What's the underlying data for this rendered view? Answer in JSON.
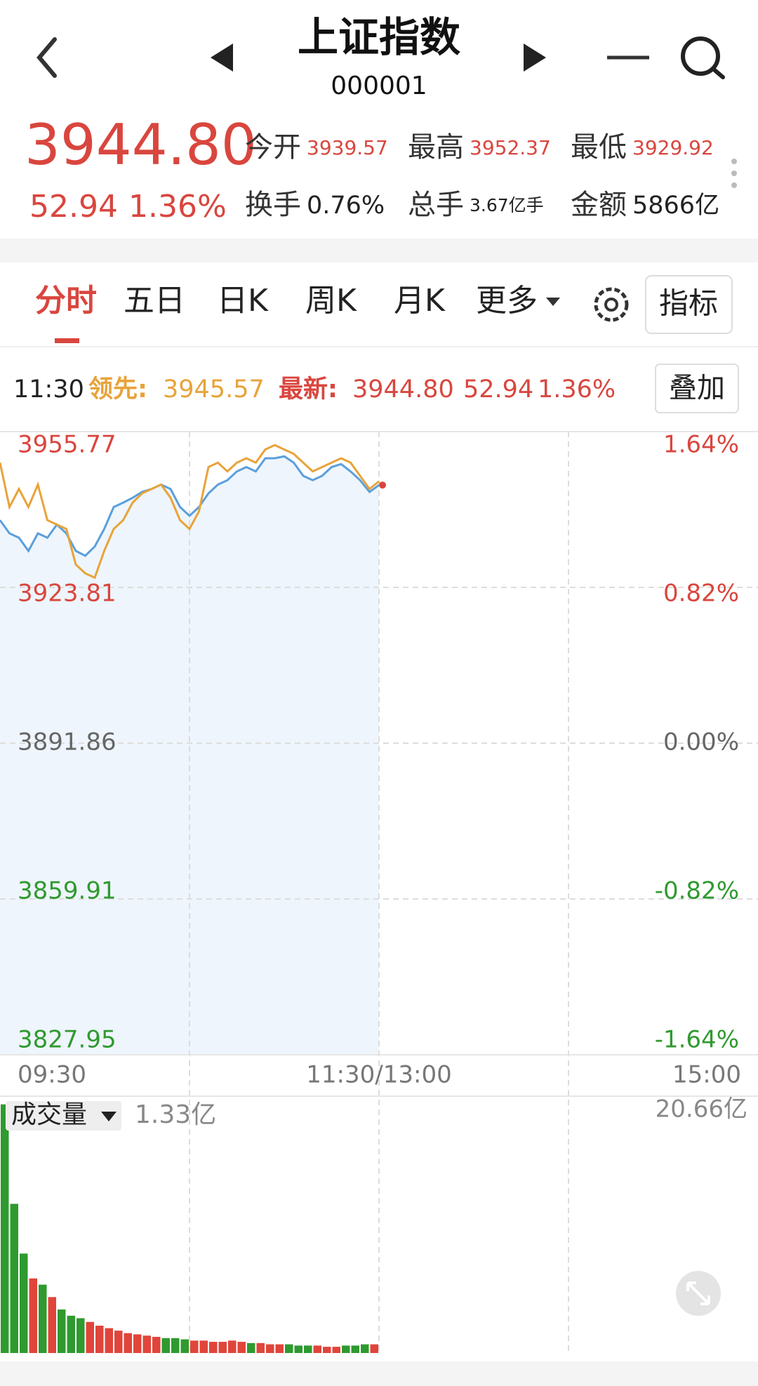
{
  "header": {
    "title": "上证指数",
    "code": "000001"
  },
  "quote": {
    "price": "3944.80",
    "change": "52.94",
    "change_pct": "1.36%"
  },
  "stats": [
    {
      "label": "今开",
      "value": "3939.57",
      "color": "#d9463e"
    },
    {
      "label": "最高",
      "value": "3952.37",
      "color": "#d9463e"
    },
    {
      "label": "最低",
      "value": "3929.92",
      "color": "#d9463e"
    },
    {
      "label": "换手",
      "value": "0.76%",
      "color": "#222222"
    },
    {
      "label": "总手",
      "value": "3.67亿手",
      "color": "#222222"
    },
    {
      "label": "金额",
      "value": "5866亿",
      "color": "#222222"
    }
  ],
  "tabs": [
    "分时",
    "五日",
    "日K",
    "周K",
    "月K",
    "更多"
  ],
  "indicator_button": "指标",
  "info": {
    "time": "11:30",
    "lead_label": "领先:",
    "lead_value": "3945.57",
    "latest_label": "最新:",
    "latest_value": "3944.80",
    "latest_change": "52.94",
    "latest_pct": "1.36%"
  },
  "overlay_button": "叠加",
  "chart_data": [
    {
      "type": "line",
      "x": [
        0,
        3,
        6,
        9,
        12,
        15,
        18,
        21,
        24,
        27,
        30,
        33,
        36,
        39,
        42,
        45,
        48,
        51,
        54,
        57,
        60,
        63,
        66,
        69,
        72,
        75,
        78,
        81,
        84,
        87,
        90,
        93,
        96,
        99,
        102,
        105,
        108,
        111,
        114,
        117,
        120
      ],
      "xlim": [
        0,
        240
      ],
      "xticks": [
        {
          "value": 0,
          "label": "09:30"
        },
        {
          "value": 120,
          "label": "11:30/13:00"
        },
        {
          "value": 240,
          "label": "15:00"
        }
      ],
      "ylim": [
        3827.95,
        3955.77
      ],
      "yticks": [
        3827.95,
        3859.91,
        3891.86,
        3923.81,
        3955.77
      ],
      "y2lim": [
        -1.64,
        1.64
      ],
      "y2ticks": [
        {
          "value": -1.64,
          "label": "-1.64%"
        },
        {
          "value": -0.82,
          "label": "-0.82%"
        },
        {
          "value": 0,
          "label": "0.00%"
        },
        {
          "value": 0.82,
          "label": "0.82%"
        },
        {
          "value": 1.64,
          "label": "1.64%"
        }
      ],
      "series": [
        {
          "name": "最新",
          "color": "#5b9fdc",
          "values": [
            3937.6,
            3934.9,
            3934.0,
            3931.3,
            3934.9,
            3934.0,
            3936.7,
            3934.9,
            3931.3,
            3930.3,
            3932.2,
            3935.8,
            3940.3,
            3941.2,
            3942.2,
            3943.4,
            3944.0,
            3944.9,
            3944.0,
            3940.3,
            3938.5,
            3940.3,
            3943.1,
            3944.9,
            3945.8,
            3947.6,
            3948.5,
            3947.6,
            3950.3,
            3950.3,
            3950.7,
            3949.4,
            3946.7,
            3945.8,
            3946.7,
            3948.5,
            3949.1,
            3947.6,
            3945.8,
            3943.4,
            3944.8
          ]
        },
        {
          "name": "领先",
          "color": "#e8a33a",
          "values": [
            3949.4,
            3940.3,
            3944.0,
            3940.3,
            3944.9,
            3937.6,
            3936.7,
            3935.8,
            3928.5,
            3926.7,
            3925.8,
            3931.3,
            3935.8,
            3937.6,
            3941.2,
            3943.1,
            3944.0,
            3944.9,
            3942.2,
            3937.6,
            3935.8,
            3939.4,
            3948.5,
            3949.4,
            3947.6,
            3949.4,
            3950.3,
            3949.4,
            3952.1,
            3953.0,
            3952.1,
            3951.2,
            3949.4,
            3947.6,
            3948.5,
            3949.4,
            3950.3,
            3949.4,
            3946.7,
            3944.0,
            3945.57
          ]
        }
      ]
    },
    {
      "type": "bar",
      "title": "成交量",
      "current": "1.33亿",
      "x": [
        0,
        3,
        6,
        9,
        12,
        15,
        18,
        21,
        24,
        27,
        30,
        33,
        36,
        39,
        42,
        45,
        48,
        51,
        54,
        57,
        60,
        63,
        66,
        69,
        72,
        75,
        78,
        81,
        84,
        87,
        90,
        93,
        96,
        99,
        102,
        105,
        108,
        111,
        114,
        117
      ],
      "xlim": [
        0,
        240
      ],
      "ylim": [
        0,
        20.66
      ],
      "yticks": [
        {
          "value": 20.66,
          "label": "20.66亿"
        }
      ],
      "up_color": "#e0453b",
      "down_color": "#2f9a2f",
      "values": [
        20,
        12,
        8,
        6,
        5.5,
        4.5,
        3.5,
        3.0,
        2.8,
        2.5,
        2.2,
        2.0,
        1.8,
        1.6,
        1.5,
        1.4,
        1.3,
        1.2,
        1.2,
        1.1,
        1.0,
        1.0,
        0.9,
        0.9,
        1.0,
        0.9,
        0.8,
        0.8,
        0.7,
        0.7,
        0.7,
        0.6,
        0.6,
        0.6,
        0.5,
        0.5,
        0.6,
        0.6,
        0.7,
        0.7
      ]
    }
  ]
}
